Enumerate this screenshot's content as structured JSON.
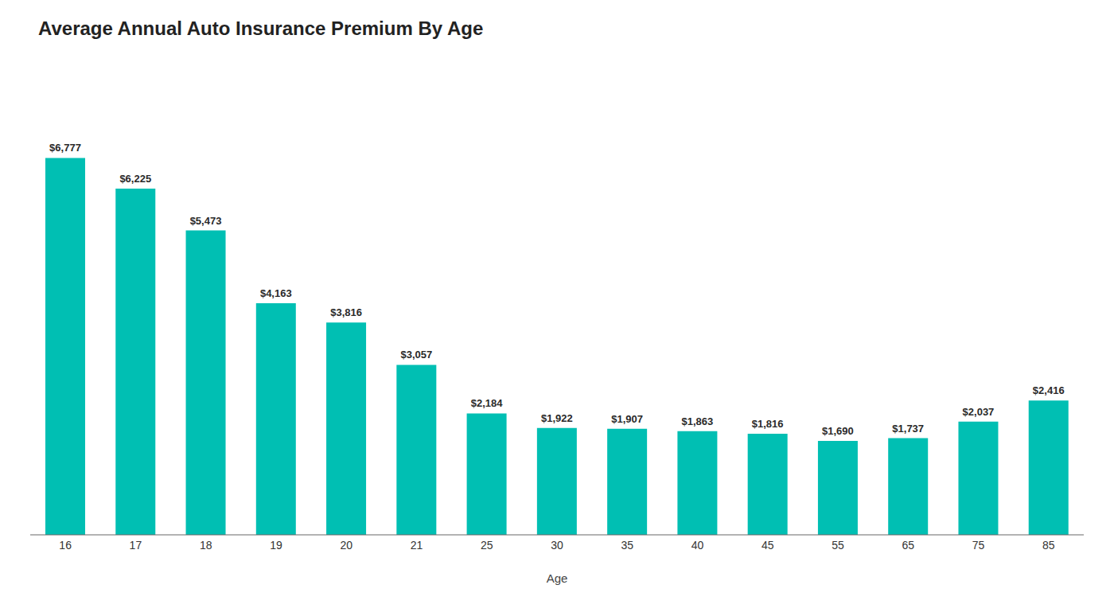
{
  "chart_data": {
    "type": "bar",
    "title": "Average Annual Auto Insurance Premium By Age",
    "xlabel": "Age",
    "categories": [
      "16",
      "17",
      "18",
      "19",
      "20",
      "21",
      "25",
      "30",
      "35",
      "40",
      "45",
      "55",
      "65",
      "75",
      "85"
    ],
    "values": [
      6777,
      6225,
      5473,
      4163,
      3816,
      3057,
      2184,
      1922,
      1907,
      1863,
      1816,
      1690,
      1737,
      2037,
      2416
    ],
    "value_labels": [
      "$6,777",
      "$6,225",
      "$5,473",
      "$4,163",
      "$3,816",
      "$3,057",
      "$2,184",
      "$1,922",
      "$1,907",
      "$1,863",
      "$1,816",
      "$1,690",
      "$1,737",
      "$2,037",
      "$2,416"
    ],
    "data_labels": true,
    "color": "#00BFB3",
    "ylim": [
      0,
      8300
    ],
    "grid": false,
    "tick_labels": "x"
  }
}
